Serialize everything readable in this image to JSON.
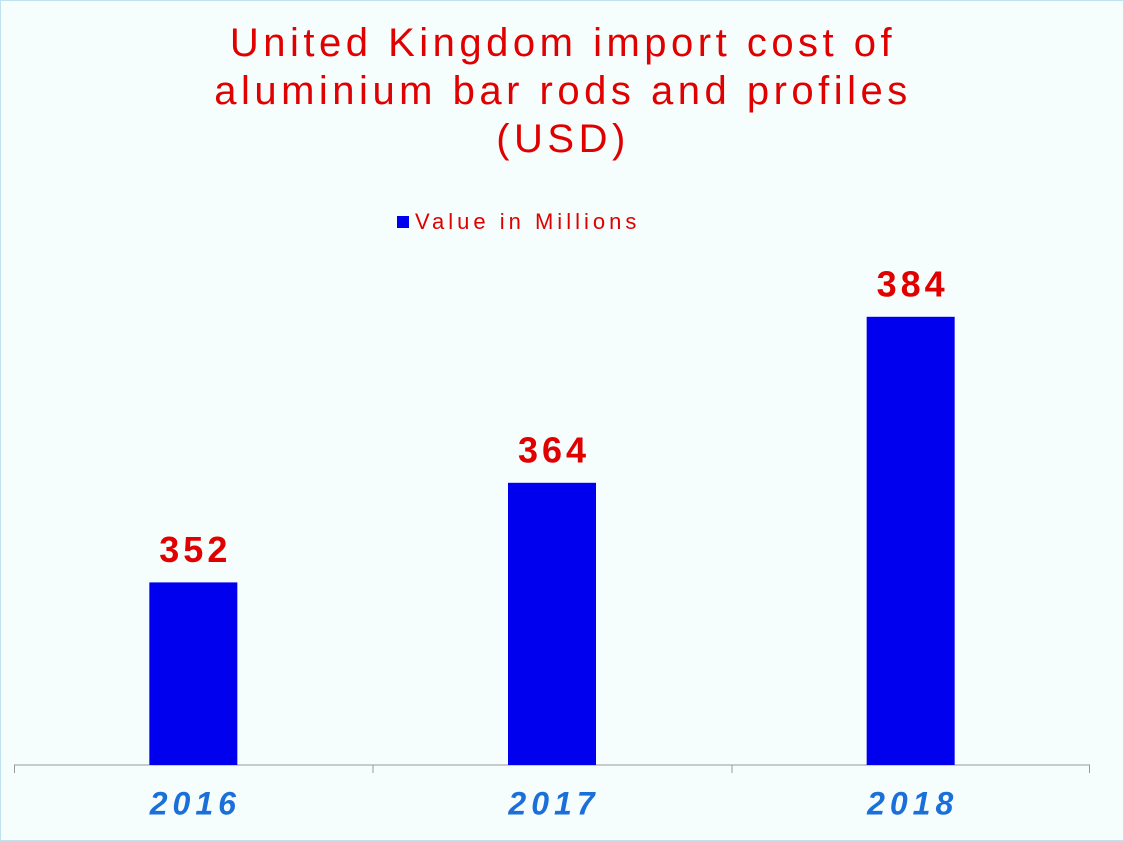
{
  "chart_data": {
    "type": "bar",
    "title": "United Kingdom import cost of aluminium bar rods and profiles (USD)",
    "categories": [
      "2016",
      "2017",
      "2018"
    ],
    "series": [
      {
        "name": "Value in Millions",
        "color": "#0000ee",
        "values": [
          352,
          364,
          384
        ]
      }
    ],
    "ylim": [
      330,
      390
    ]
  }
}
